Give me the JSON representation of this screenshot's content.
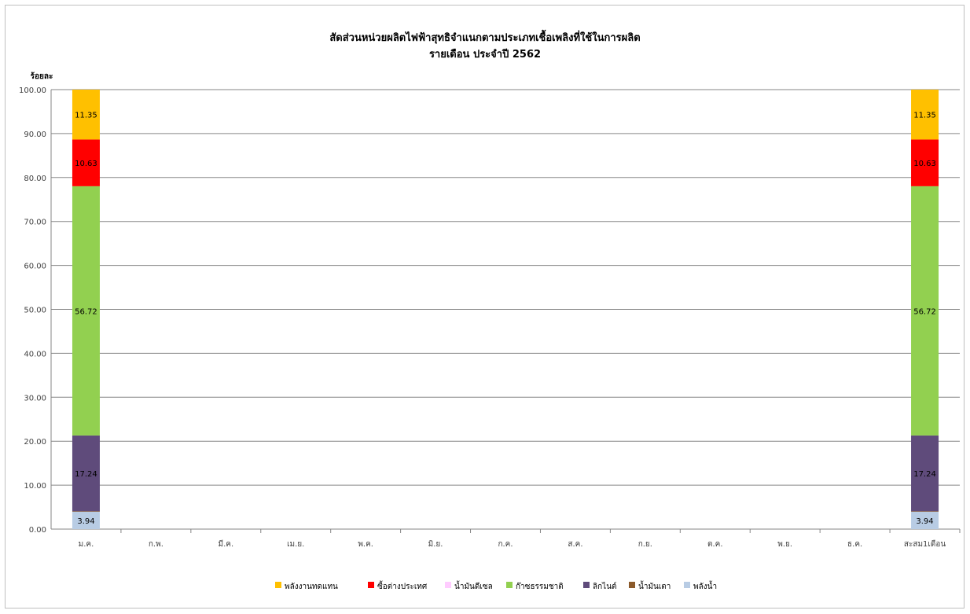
{
  "chart_data": {
    "type": "bar",
    "stacked": true,
    "title": "สัดส่วนหน่วยผลิตไฟฟ้าสุทธิจำแนกตามประเภทเชื้อเพลิงที่ใช้ในการผลิต",
    "subtitle": "รายเดือน ประจำปี 2562",
    "ylabel": "ร้อยละ",
    "ylim": [
      0,
      100
    ],
    "yticks": [
      "0.00",
      "10.00",
      "20.00",
      "30.00",
      "40.00",
      "50.00",
      "60.00",
      "70.00",
      "80.00",
      "90.00",
      "100.00"
    ],
    "grid": true,
    "legend_position": "bottom",
    "categories": [
      "ม.ค.",
      "ก.พ.",
      "มี.ค.",
      "เม.ย.",
      "พ.ค.",
      "มิ.ย.",
      "ก.ค.",
      "ส.ค.",
      "ก.ย.",
      "ต.ค.",
      "พ.ย.",
      "ธ.ค.",
      "สะสม1เดือน"
    ],
    "series": [
      {
        "name": "พลังน้ำ",
        "color": "#b8cce4",
        "values": [
          3.94,
          null,
          null,
          null,
          null,
          null,
          null,
          null,
          null,
          null,
          null,
          null,
          3.94
        ],
        "labels": [
          "3.94",
          "",
          "",
          "",
          "",
          "",
          "",
          "",
          "",
          "",
          "",
          "",
          "3.94"
        ]
      },
      {
        "name": "น้ำมันเตา",
        "color": "#8b5a2b",
        "values": [
          0.12,
          null,
          null,
          null,
          null,
          null,
          null,
          null,
          null,
          null,
          null,
          null,
          0.12
        ],
        "labels": [
          "",
          "",
          "",
          "",
          "",
          "",
          "",
          "",
          "",
          "",
          "",
          "",
          ""
        ]
      },
      {
        "name": "ลิกไนต์",
        "color": "#5f4b7b",
        "values": [
          17.24,
          null,
          null,
          null,
          null,
          null,
          null,
          null,
          null,
          null,
          null,
          null,
          17.24
        ],
        "labels": [
          "17.24",
          "",
          "",
          "",
          "",
          "",
          "",
          "",
          "",
          "",
          "",
          "",
          "17.24"
        ]
      },
      {
        "name": "ก๊าซธรรมชาติ",
        "color": "#92d050",
        "values": [
          56.72,
          null,
          null,
          null,
          null,
          null,
          null,
          null,
          null,
          null,
          null,
          null,
          56.72
        ],
        "labels": [
          "56.72",
          "",
          "",
          "",
          "",
          "",
          "",
          "",
          "",
          "",
          "",
          "",
          "56.72"
        ]
      },
      {
        "name": "น้ำมันดีเซล",
        "color": "#ffccff",
        "values": [
          0.0,
          null,
          null,
          null,
          null,
          null,
          null,
          null,
          null,
          null,
          null,
          null,
          0.0
        ],
        "labels": [
          "",
          "",
          "",
          "",
          "",
          "",
          "",
          "",
          "",
          "",
          "",
          "",
          ""
        ]
      },
      {
        "name": "ซื้อต่างประเทศ",
        "color": "#ff0000",
        "values": [
          10.63,
          null,
          null,
          null,
          null,
          null,
          null,
          null,
          null,
          null,
          null,
          null,
          10.63
        ],
        "labels": [
          "10.63",
          "",
          "",
          "",
          "",
          "",
          "",
          "",
          "",
          "",
          "",
          "",
          "10.63"
        ]
      },
      {
        "name": "พลังงานทดแทน",
        "color": "#ffc000",
        "values": [
          11.35,
          null,
          null,
          null,
          null,
          null,
          null,
          null,
          null,
          null,
          null,
          null,
          11.35
        ],
        "labels": [
          "11.35",
          "",
          "",
          "",
          "",
          "",
          "",
          "",
          "",
          "",
          "",
          "",
          "11.35"
        ]
      }
    ],
    "legend_order": [
      "พลังงานทดแทน",
      "ซื้อต่างประเทศ",
      "น้ำมันดีเซล",
      "ก๊าซธรรมชาติ",
      "ลิกไนต์",
      "น้ำมันเตา",
      "พลังน้ำ"
    ]
  }
}
